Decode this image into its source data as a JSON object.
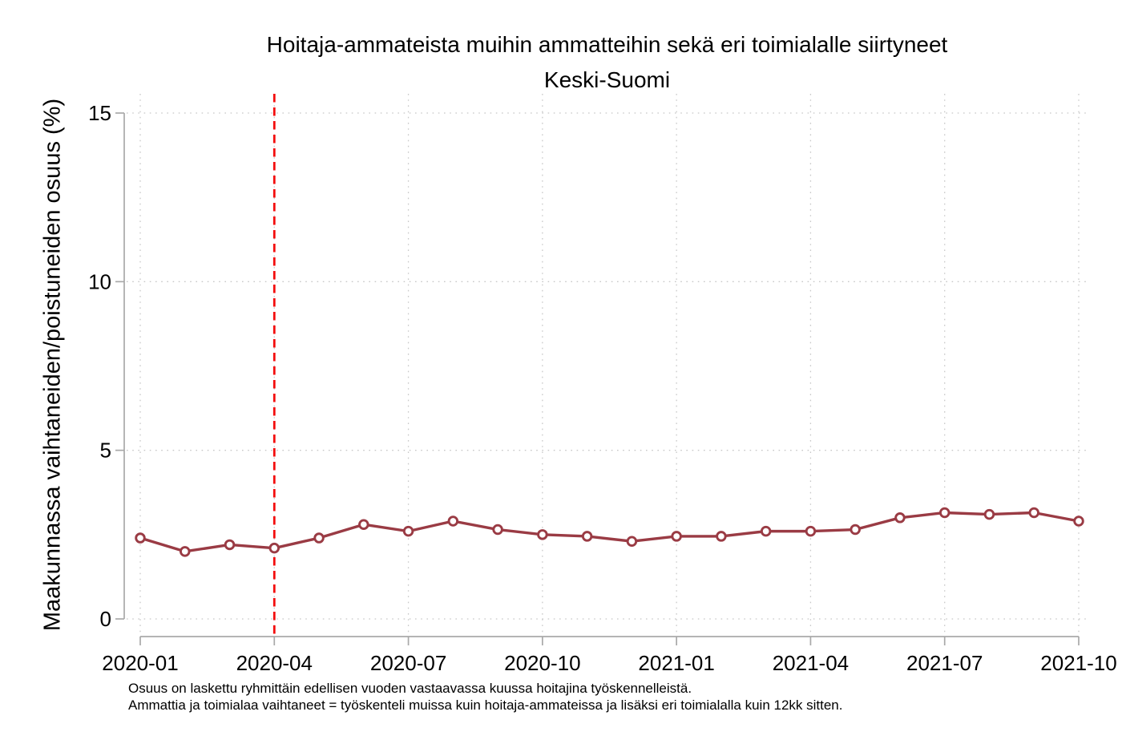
{
  "chart_data": {
    "type": "line",
    "title": "Hoitaja-ammateista muihin ammatteihin sekä eri toimialalle siirtyneet",
    "subtitle": "Keski-Suomi",
    "ylabel": "Maakunnassa vaihtaneiden/poistuneiden osuus (%)",
    "xlabel": "",
    "x": [
      "2020-01",
      "2020-02",
      "2020-03",
      "2020-04",
      "2020-05",
      "2020-06",
      "2020-07",
      "2020-08",
      "2020-09",
      "2020-10",
      "2020-11",
      "2020-12",
      "2021-01",
      "2021-02",
      "2021-03",
      "2021-04",
      "2021-05",
      "2021-06",
      "2021-07",
      "2021-08",
      "2021-09",
      "2021-10"
    ],
    "series": [
      {
        "name": "Keski-Suomi",
        "color": "#9a3b44",
        "marker": "open-circle",
        "values": [
          2.4,
          2.0,
          2.2,
          2.1,
          2.4,
          2.8,
          2.6,
          2.9,
          2.65,
          2.5,
          2.45,
          2.3,
          2.45,
          2.45,
          2.6,
          2.6,
          2.65,
          3.0,
          3.15,
          3.1,
          3.15,
          2.9
        ]
      }
    ],
    "ylim": [
      0,
      15
    ],
    "yticks": [
      0,
      5,
      10,
      15
    ],
    "ytick_labels": [
      "0",
      "5",
      "10",
      "15"
    ],
    "xtick_indices": [
      0,
      3,
      6,
      9,
      12,
      15,
      18,
      21
    ],
    "xtick_labels": [
      "2020-01",
      "2020-04",
      "2020-07",
      "2020-10",
      "2021-01",
      "2021-04",
      "2021-07",
      "2021-10"
    ],
    "grid": "dotted",
    "legend_position": "none",
    "vline": {
      "x": "2020-04",
      "index": 3,
      "style": "dashed",
      "color": "#f30d0d"
    }
  },
  "colors": {
    "series": "#9a3b44",
    "vline_red": "#f30d0d",
    "axis_gray": "#a9a9a9",
    "grid_gray": "#c8c8c8",
    "marker_fill": "#ffffff",
    "text": "#000000",
    "background": "#ffffff"
  },
  "footnotes": [
    "Osuus on laskettu ryhmittäin edellisen vuoden vastaavassa kuussa hoitajina työskennelleistä.",
    "Ammattia ja toimialaa vaihtaneet = työskenteli muissa kuin hoitaja-ammateissa ja lisäksi eri toimialalla kuin 12kk sitten."
  ]
}
